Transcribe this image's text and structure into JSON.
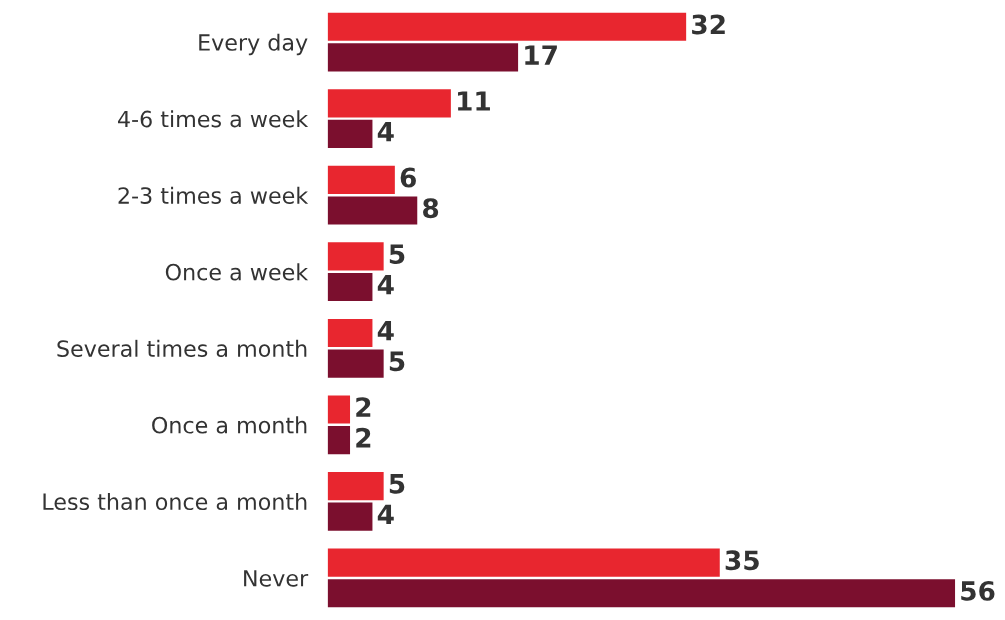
{
  "chart_data": {
    "type": "bar",
    "orientation": "horizontal",
    "categories": [
      "Every day",
      "4-6 times a week",
      "2-3 times a week",
      "Once a week",
      "Several times a month",
      "Once a month",
      "Less than once a month",
      "Never"
    ],
    "series": [
      {
        "color": "#e8262f",
        "values": [
          32,
          11,
          6,
          5,
          4,
          2,
          5,
          35
        ]
      },
      {
        "color": "#7b0f2e",
        "values": [
          17,
          4,
          8,
          4,
          5,
          2,
          4,
          56
        ]
      }
    ],
    "data_labels": true,
    "tick_labels": "y",
    "grid": false,
    "legend": false
  }
}
